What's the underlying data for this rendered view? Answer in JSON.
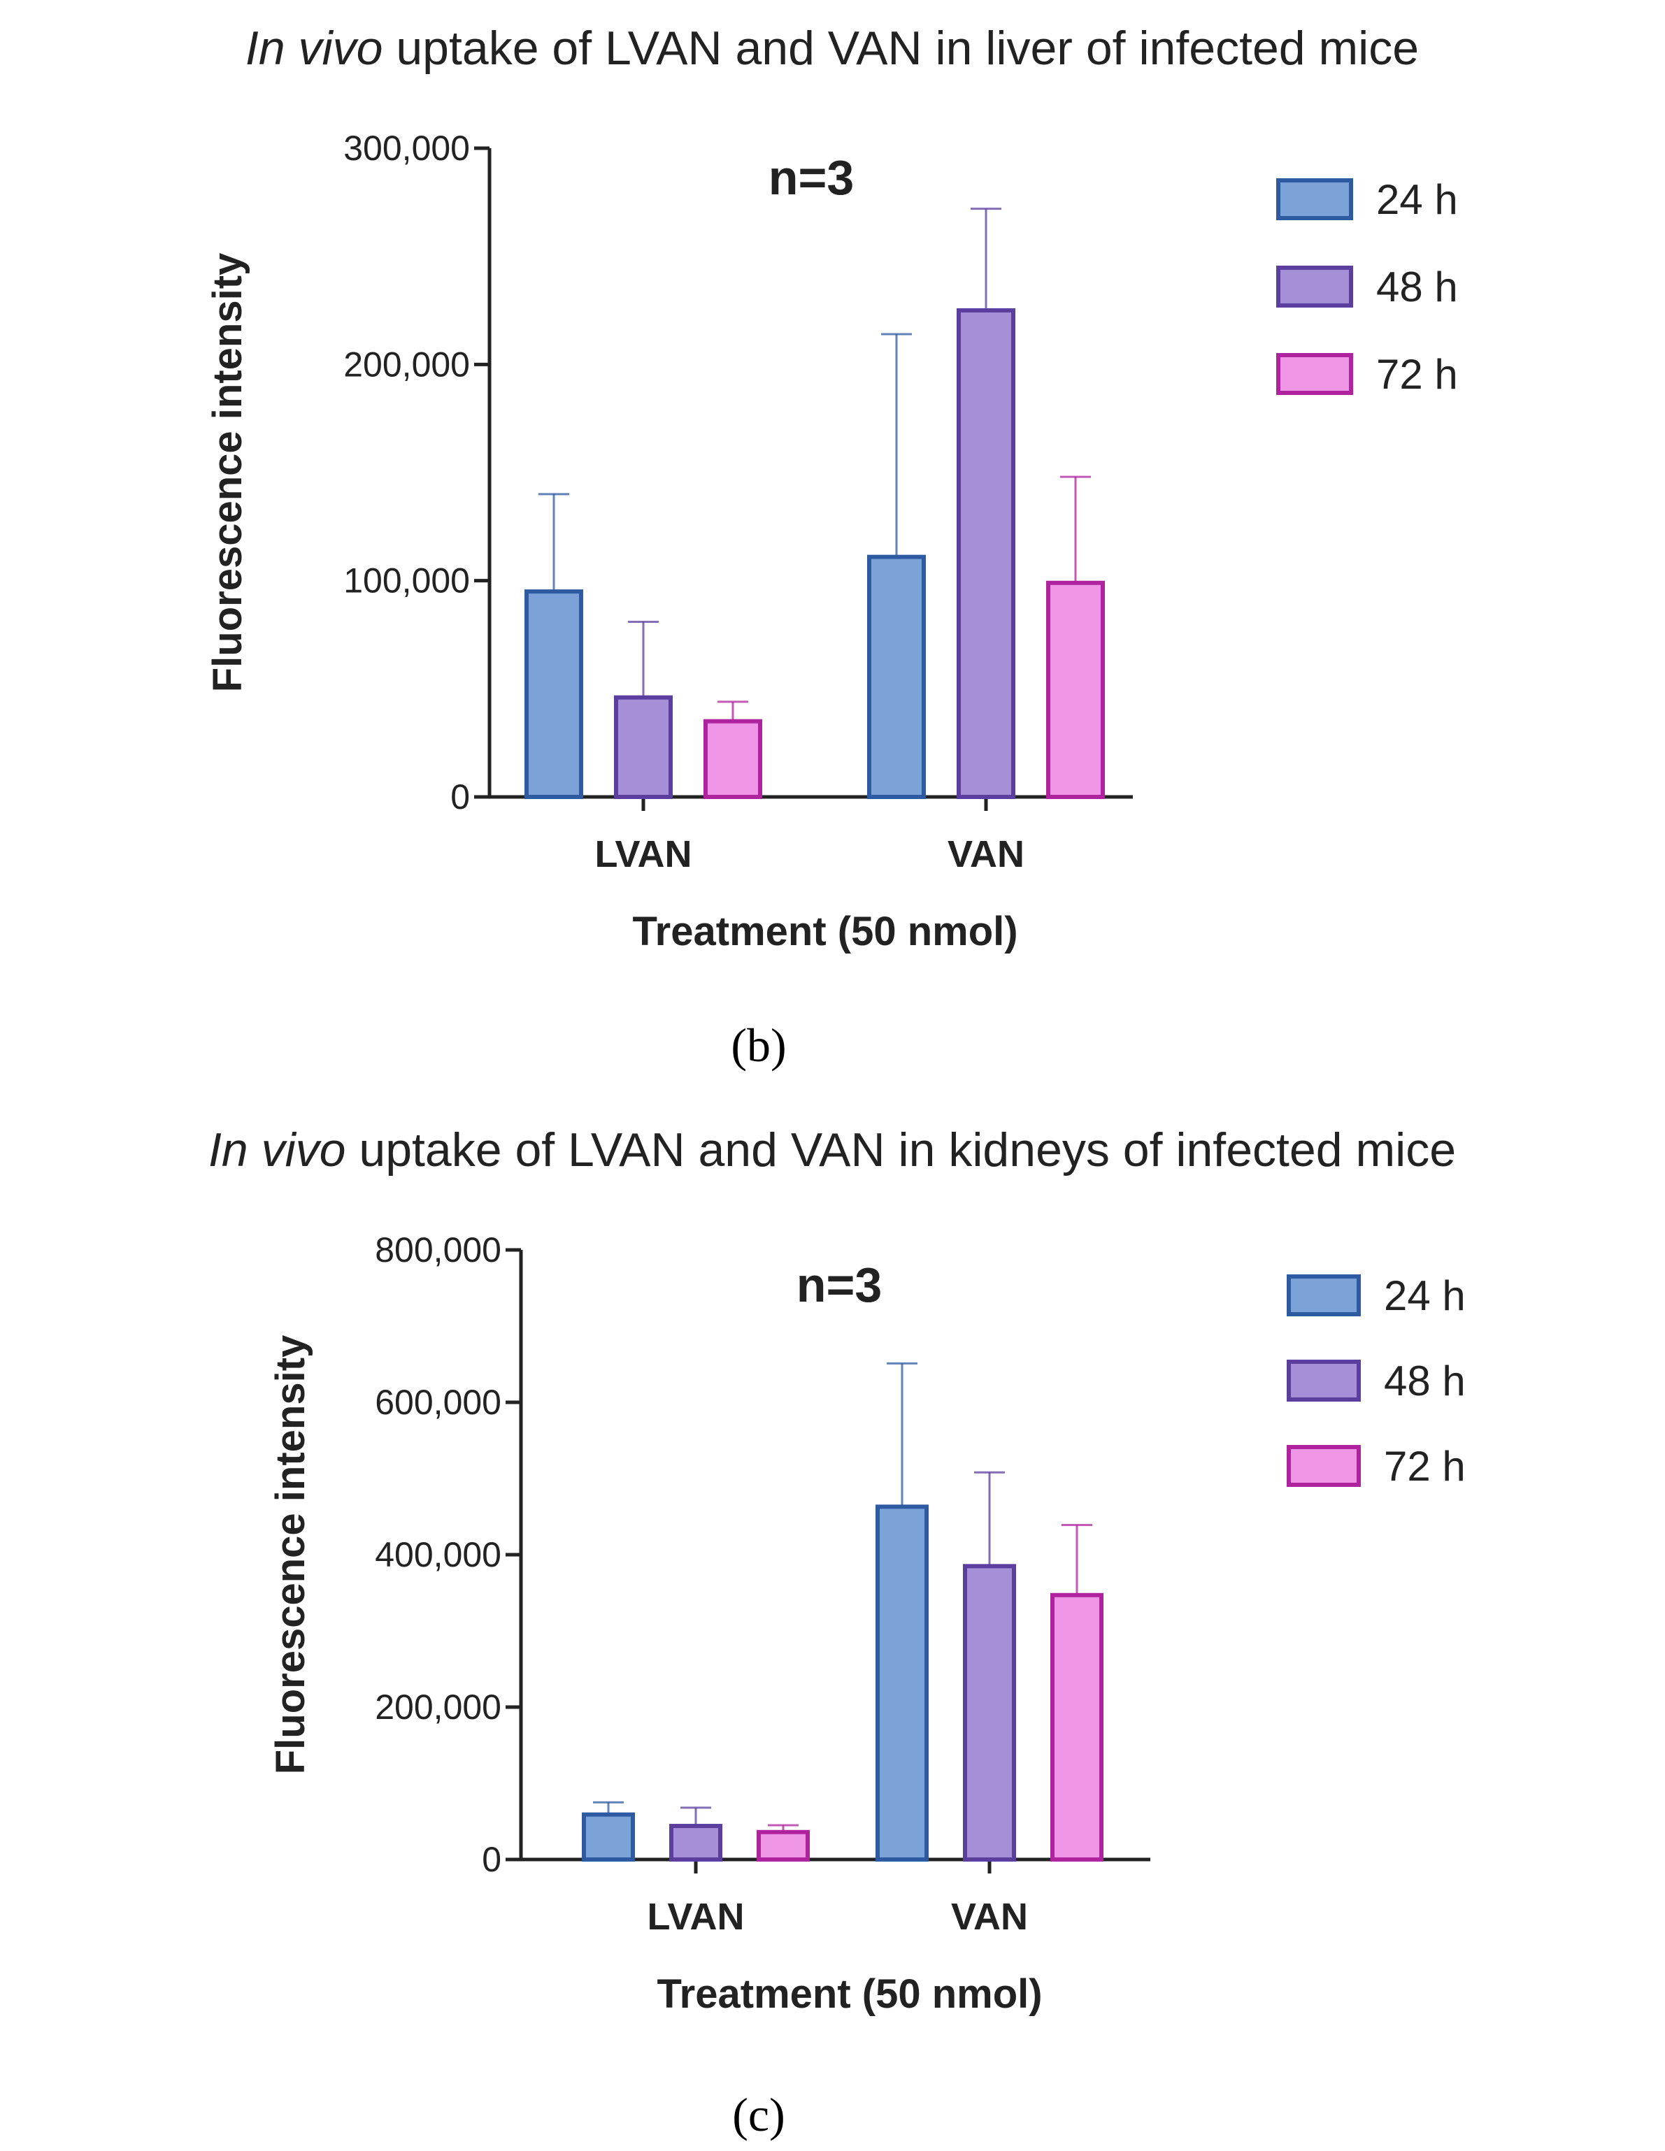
{
  "chart_data": [
    {
      "type": "bar",
      "title_italic": "In vivo",
      "title_rest": "uptake of LVAN and VAN in liver of infected mice",
      "annotation": "n=3",
      "xlabel": "Treatment (50 nmol)",
      "ylabel": "Fluorescence intensity",
      "ylim": [
        0,
        300000
      ],
      "yticks": [
        0,
        100000,
        200000,
        300000
      ],
      "ytick_labels": [
        "0",
        "100,000",
        "200,000",
        "300,000"
      ],
      "categories": [
        "LVAN",
        "VAN"
      ],
      "series": [
        {
          "name": "24 h",
          "values": [
            95000,
            111000
          ],
          "errors": [
            45000,
            103000
          ],
          "fill": "#7ba3d8",
          "stroke": "#2d5aa0"
        },
        {
          "name": "48 h",
          "values": [
            46000,
            225000
          ],
          "errors": [
            35000,
            47000
          ],
          "fill": "#a58fd6",
          "stroke": "#5b3e9e"
        },
        {
          "name": "72 h",
          "values": [
            35000,
            99000
          ],
          "errors": [
            9000,
            49000
          ],
          "fill": "#ef96e6",
          "stroke": "#b0239f"
        }
      ],
      "legend_position": "right",
      "panel_label": "(b)"
    },
    {
      "type": "bar",
      "title_italic": "In vivo",
      "title_rest": "uptake of LVAN and VAN in kidneys of infected mice",
      "annotation": "n=3",
      "xlabel": "Treatment (50 nmol)",
      "ylabel": "Fluorescence intensity",
      "ylim": [
        0,
        800000
      ],
      "yticks": [
        0,
        200000,
        400000,
        600000,
        800000
      ],
      "ytick_labels": [
        "0",
        "200,000",
        "400,000",
        "600,000",
        "800,000"
      ],
      "categories": [
        "LVAN",
        "VAN"
      ],
      "series": [
        {
          "name": "24 h",
          "values": [
            59000,
            463000
          ],
          "errors": [
            16000,
            188000
          ],
          "fill": "#7ba3d8",
          "stroke": "#2d5aa0"
        },
        {
          "name": "48 h",
          "values": [
            44000,
            385000
          ],
          "errors": [
            24000,
            123000
          ],
          "fill": "#a58fd6",
          "stroke": "#5b3e9e"
        },
        {
          "name": "72 h",
          "values": [
            36000,
            347000
          ],
          "errors": [
            9000,
            92000
          ],
          "fill": "#ef96e6",
          "stroke": "#b0239f"
        }
      ],
      "legend_position": "right",
      "panel_label": "(c)"
    }
  ]
}
